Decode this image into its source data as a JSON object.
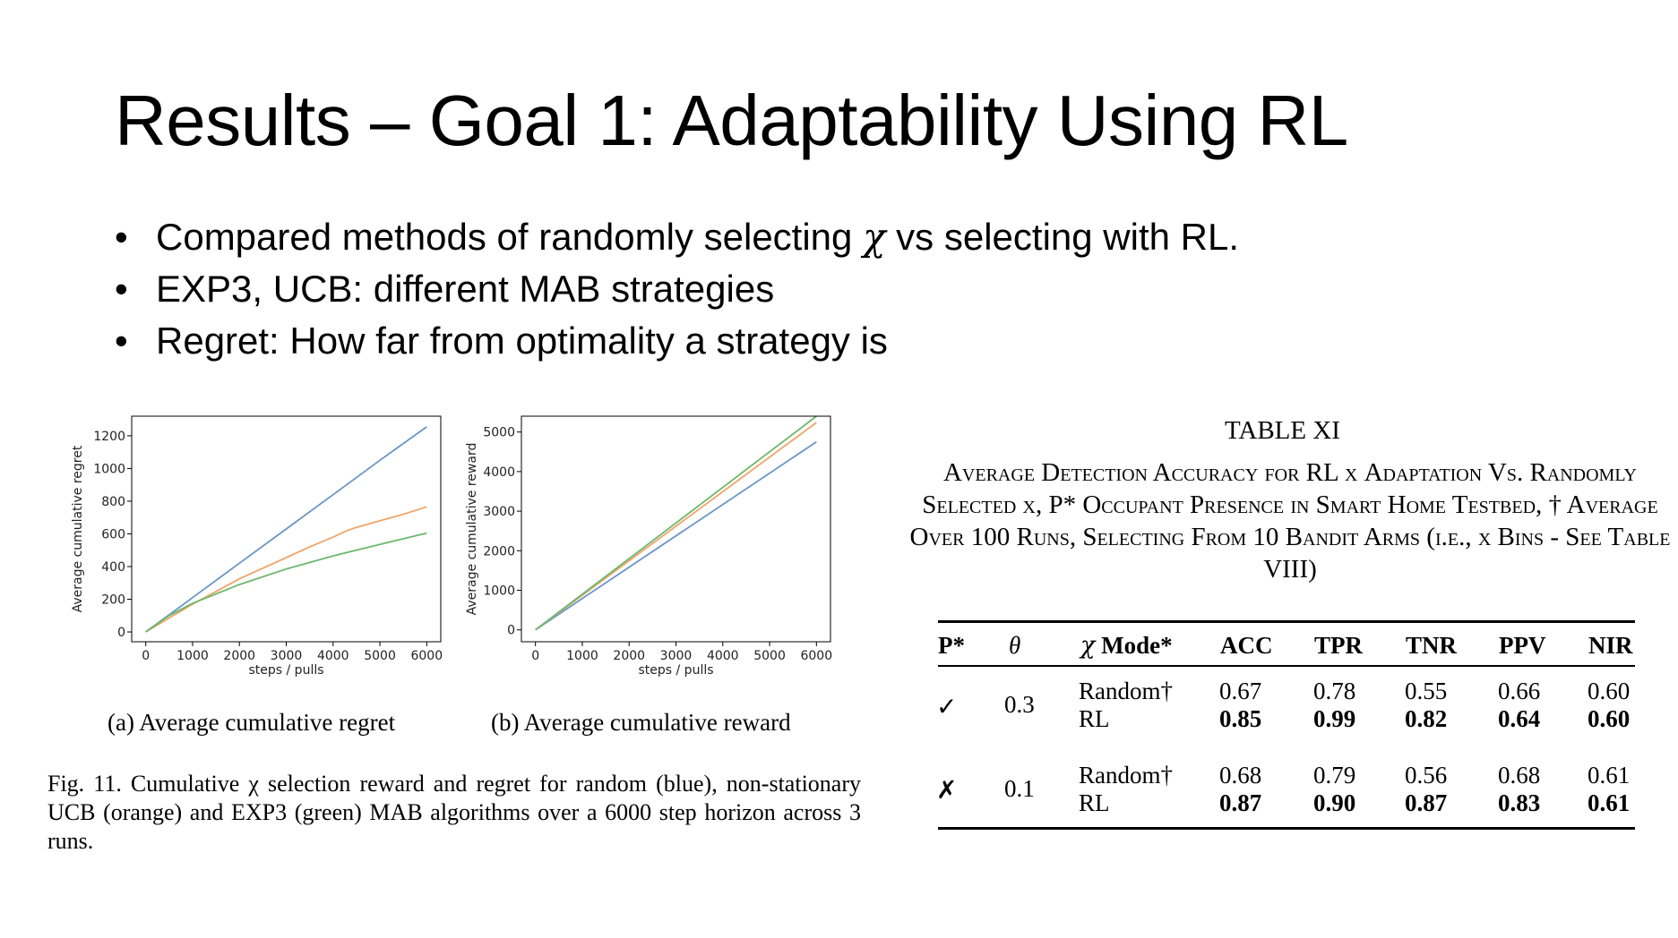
{
  "slide": {
    "title": "Results – Goal 1: Adaptability Using RL",
    "bullets": [
      {
        "before": "Compared methods of randomly selecting ",
        "symbol": "χ",
        "after": " vs selecting with RL."
      },
      {
        "text": "EXP3, UCB: different MAB strategies"
      },
      {
        "text": "Regret: How far from optimality a strategy is"
      }
    ]
  },
  "figure": {
    "caption": "Fig. 11.    Cumulative χ selection reward and regret for random (blue), non-stationary UCB (orange) and EXP3 (green) MAB algorithms over a 6000 step horizon across 3 runs.",
    "subcaption_a": "(a) Average cumulative regret",
    "subcaption_b": "(b) Average cumulative reward"
  },
  "chart_data": [
    {
      "type": "line",
      "xlabel": "steps / pulls",
      "ylabel": "Average cumulative regret",
      "xlim": [
        -300,
        6300
      ],
      "ylim": [
        -60,
        1320
      ],
      "xticks": [
        0,
        1000,
        2000,
        3000,
        4000,
        5000,
        6000
      ],
      "yticks": [
        0,
        200,
        400,
        600,
        800,
        1000,
        1200
      ],
      "grid": false,
      "colors": {
        "random": "#6b95c4",
        "ucb": "#f0a468",
        "exp3": "#6cb86c"
      },
      "series": [
        {
          "key": "random",
          "x": [
            0,
            1000,
            2000,
            3000,
            4000,
            5000,
            6000
          ],
          "values": [
            0,
            210,
            420,
            630,
            840,
            1050,
            1255
          ]
        },
        {
          "key": "ucb",
          "x": [
            0,
            1000,
            2000,
            2500,
            3000,
            3500,
            4000,
            4300,
            4500,
            5000,
            5500,
            6000
          ],
          "values": [
            0,
            170,
            325,
            390,
            455,
            520,
            580,
            620,
            640,
            680,
            720,
            765
          ]
        },
        {
          "key": "exp3",
          "x": [
            0,
            500,
            1000,
            2000,
            3000,
            4000,
            5000,
            6000
          ],
          "values": [
            0,
            100,
            175,
            290,
            385,
            465,
            535,
            605
          ]
        }
      ]
    },
    {
      "type": "line",
      "xlabel": "steps / pulls",
      "ylabel": "Average cumulative reward",
      "xlim": [
        -300,
        6300
      ],
      "ylim": [
        -300,
        5400
      ],
      "xticks": [
        0,
        1000,
        2000,
        3000,
        4000,
        5000,
        6000
      ],
      "yticks": [
        0,
        1000,
        2000,
        3000,
        4000,
        5000
      ],
      "grid": false,
      "colors": {
        "random": "#6b95c4",
        "ucb": "#f0a468",
        "exp3": "#6cb86c"
      },
      "series": [
        {
          "key": "random",
          "x": [
            0,
            6000
          ],
          "values": [
            0,
            4750
          ]
        },
        {
          "key": "ucb",
          "x": [
            0,
            6000
          ],
          "values": [
            0,
            5240
          ]
        },
        {
          "key": "exp3",
          "x": [
            0,
            6000
          ],
          "values": [
            0,
            5400
          ]
        }
      ]
    }
  ],
  "table": {
    "title": "TABLE XI",
    "caption": "Average Detection Accuracy for RL χ Adaptation Vs. Randomly Selected χ, P* Occupant Presence in Smart Home Testbed, † Average Over 100 Runs, Selecting From 10 Bandit Arms (i.e., χ Bins - See Table VIII)",
    "headers": {
      "p": "P*",
      "theta": "θ",
      "chi": "χ",
      "mode": "Mode*",
      "acc": "ACC",
      "tpr": "TPR",
      "tnr": "TNR",
      "ppv": "PPV",
      "nir": "NIR"
    },
    "groups": [
      {
        "p": "✓",
        "theta": "0.3",
        "rows": [
          {
            "mode": "Random†",
            "acc": "0.67",
            "tpr": "0.78",
            "tnr": "0.55",
            "ppv": "0.66",
            "nir": "0.60"
          },
          {
            "mode": "RL",
            "acc": "0.85",
            "tpr": "0.99",
            "tnr": "0.82",
            "ppv": "0.64",
            "nir": "0.60"
          }
        ]
      },
      {
        "p": "✗",
        "theta": "0.1",
        "rows": [
          {
            "mode": "Random†",
            "acc": "0.68",
            "tpr": "0.79",
            "tnr": "0.56",
            "ppv": "0.68",
            "nir": "0.61"
          },
          {
            "mode": "RL",
            "acc": "0.87",
            "tpr": "0.90",
            "tnr": "0.87",
            "ppv": "0.83",
            "nir": "0.61"
          }
        ]
      }
    ]
  }
}
